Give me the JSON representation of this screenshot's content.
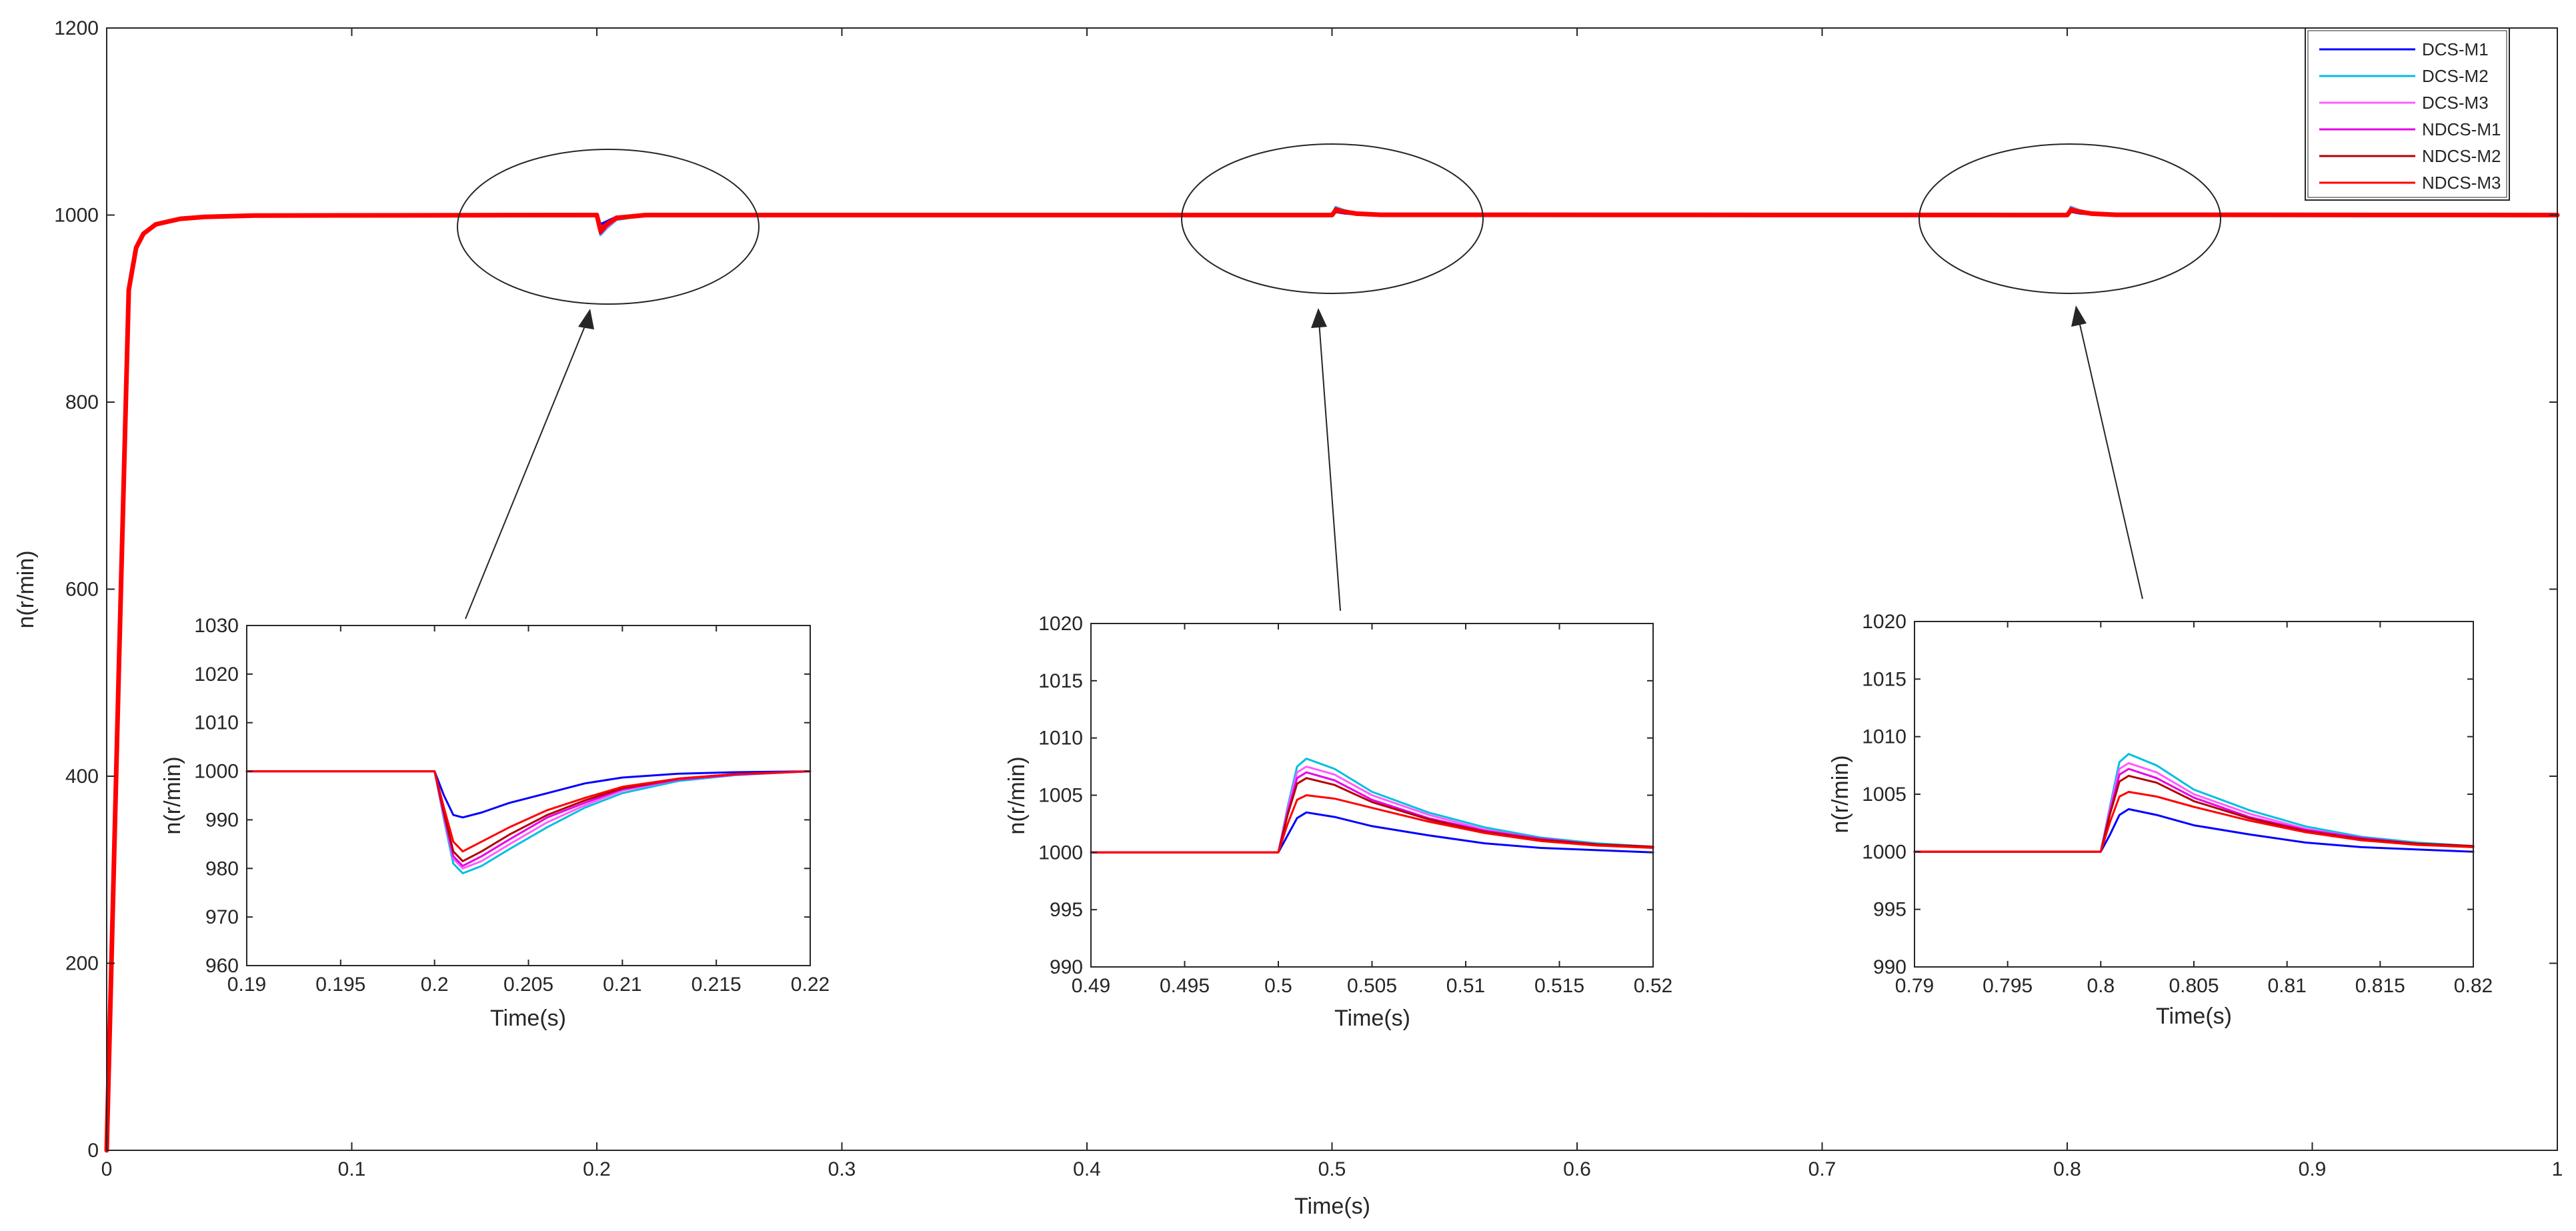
{
  "colors": {
    "DCS-M1": "#0000ff",
    "DCS-M2": "#00bfe0",
    "DCS-M3": "#ff5cff",
    "NDCS-M1": "#e600e6",
    "NDCS-M2": "#b30000",
    "NDCS-M3": "#ff0000",
    "axis": "#262626",
    "background": "#ffffff"
  },
  "chart_data": [
    {
      "type": "line",
      "title": "",
      "xlabel": "Time(s)",
      "ylabel": "n(r/min)",
      "xlim": [
        0,
        1
      ],
      "ylim": [
        0,
        1200
      ],
      "xticks": [
        0,
        0.1,
        0.2,
        0.3,
        0.4,
        0.5,
        0.6,
        0.7,
        0.8,
        0.9,
        1
      ],
      "xtick_labels": [
        "0",
        "0.1",
        "0.2",
        "0.3",
        "0.4",
        "0.5",
        "0.6",
        "0.7",
        "0.8",
        "0.9",
        "1"
      ],
      "yticks": [
        0,
        200,
        400,
        600,
        800,
        1000,
        1200
      ],
      "ytick_labels": [
        "0",
        "200",
        "400",
        "600",
        "800",
        "1000",
        "1200"
      ],
      "grid": false,
      "legend_position": "top-right",
      "series": [
        {
          "name": "DCS-M1",
          "x": [
            0,
            0.005,
            0.009,
            0.012,
            0.015,
            0.02,
            0.03,
            0.04,
            0.06,
            0.2,
            0.2015,
            0.204,
            0.208,
            0.22,
            0.5,
            0.5015,
            0.505,
            0.51,
            0.52,
            0.8,
            0.8015,
            0.805,
            0.81,
            0.82,
            1
          ],
          "y": [
            0,
            520,
            920,
            965,
            980,
            990,
            996,
            998,
            999.5,
            1000,
            990,
            993,
            998,
            1000,
            1000,
            1003.5,
            1002,
            1001,
            1000,
            1000,
            1003.7,
            1002,
            1001,
            1000,
            1000
          ]
        },
        {
          "name": "DCS-M2",
          "x": [
            0,
            0.005,
            0.009,
            0.012,
            0.015,
            0.02,
            0.03,
            0.04,
            0.06,
            0.2,
            0.2015,
            0.204,
            0.208,
            0.22,
            0.5,
            0.5015,
            0.505,
            0.51,
            0.52,
            0.8,
            0.8015,
            0.805,
            0.81,
            0.82,
            1
          ],
          "y": [
            0,
            520,
            920,
            965,
            980,
            990,
            996,
            998,
            999.5,
            1000,
            979,
            986,
            995,
            1000,
            1000,
            1008.3,
            1005,
            1002,
            1000.5,
            1000,
            1008.5,
            1005,
            1002,
            1000.5,
            1000
          ]
        },
        {
          "name": "DCS-M3",
          "x": [
            0,
            0.005,
            0.009,
            0.012,
            0.015,
            0.02,
            0.03,
            0.04,
            0.06,
            0.2,
            0.2015,
            0.204,
            0.208,
            0.22,
            0.5,
            0.5015,
            0.505,
            0.51,
            0.52,
            0.8,
            0.8015,
            0.805,
            0.81,
            0.82,
            1
          ],
          "y": [
            0,
            520,
            920,
            965,
            980,
            990,
            996,
            998,
            999.5,
            1000,
            980,
            987,
            995.5,
            1000,
            1000,
            1007.5,
            1004.5,
            1002,
            1000.5,
            1000,
            1007.7,
            1004.5,
            1002,
            1000.5,
            1000
          ]
        },
        {
          "name": "NDCS-M1",
          "x": [
            0,
            0.005,
            0.009,
            0.012,
            0.015,
            0.02,
            0.03,
            0.04,
            0.06,
            0.2,
            0.2015,
            0.204,
            0.208,
            0.22,
            0.5,
            0.5015,
            0.505,
            0.51,
            0.52,
            0.8,
            0.8015,
            0.805,
            0.81,
            0.82,
            1
          ],
          "y": [
            0,
            520,
            920,
            965,
            980,
            990,
            996,
            998,
            999.5,
            1000,
            980.5,
            988,
            996,
            1000,
            1000,
            1007,
            1004,
            1001.8,
            1000.4,
            1000,
            1007.2,
            1004,
            1001.8,
            1000.4,
            1000
          ]
        },
        {
          "name": "NDCS-M2",
          "x": [
            0,
            0.005,
            0.009,
            0.012,
            0.015,
            0.02,
            0.03,
            0.04,
            0.06,
            0.2,
            0.2015,
            0.204,
            0.208,
            0.22,
            0.5,
            0.5015,
            0.505,
            0.51,
            0.52,
            0.8,
            0.8015,
            0.805,
            0.81,
            0.82,
            1
          ],
          "y": [
            0,
            520,
            920,
            965,
            980,
            990,
            996,
            998,
            999.5,
            1000,
            981.5,
            989,
            996.5,
            1000,
            1000,
            1006.5,
            1004,
            1001.8,
            1000.4,
            1000,
            1006.5,
            1004,
            1001.8,
            1000.4,
            1000
          ]
        },
        {
          "name": "NDCS-M3",
          "x": [
            0,
            0.005,
            0.009,
            0.012,
            0.015,
            0.02,
            0.03,
            0.04,
            0.06,
            0.2,
            0.2015,
            0.204,
            0.208,
            0.22,
            0.5,
            0.5015,
            0.505,
            0.51,
            0.52,
            0.8,
            0.8015,
            0.805,
            0.81,
            0.82,
            1
          ],
          "y": [
            0,
            520,
            920,
            965,
            980,
            990,
            996,
            998,
            999.5,
            1000,
            983.5,
            990,
            997,
            1000,
            1000,
            1005,
            1003.5,
            1001.5,
            1000.3,
            1000,
            1005.2,
            1003.5,
            1001.5,
            1000.3,
            1000
          ]
        }
      ]
    },
    {
      "type": "line",
      "title": "",
      "xlabel": "Time(s)",
      "ylabel": "n(r/min)",
      "xlim": [
        0.19,
        0.22
      ],
      "ylim": [
        960,
        1030
      ],
      "xticks": [
        0.19,
        0.195,
        0.2,
        0.205,
        0.21,
        0.215,
        0.22
      ],
      "xtick_labels": [
        "0.19",
        "0.195",
        "0.2",
        "0.205",
        "0.21",
        "0.215",
        "0.22"
      ],
      "yticks": [
        960,
        970,
        980,
        990,
        1000,
        1010,
        1020,
        1030
      ],
      "ytick_labels": [
        "960",
        "970",
        "980",
        "990",
        "1000",
        "1010",
        "1020",
        "1030"
      ],
      "grid": false,
      "series": [
        {
          "name": "DCS-M1",
          "x": [
            0.19,
            0.2,
            0.2005,
            0.201,
            0.2015,
            0.2025,
            0.204,
            0.206,
            0.208,
            0.21,
            0.213,
            0.216,
            0.22
          ],
          "y": [
            1000,
            1000,
            995,
            991,
            990.5,
            991.5,
            993.5,
            995.5,
            997.5,
            998.7,
            999.5,
            999.8,
            1000
          ]
        },
        {
          "name": "DCS-M2",
          "x": [
            0.19,
            0.2,
            0.2005,
            0.201,
            0.2015,
            0.2025,
            0.204,
            0.206,
            0.208,
            0.21,
            0.213,
            0.216,
            0.22
          ],
          "y": [
            1000,
            1000,
            990,
            981,
            979,
            980.5,
            984,
            988.5,
            992.5,
            995.5,
            998,
            999.2,
            1000
          ]
        },
        {
          "name": "DCS-M3",
          "x": [
            0.19,
            0.2,
            0.2005,
            0.201,
            0.2015,
            0.2025,
            0.204,
            0.206,
            0.208,
            0.21,
            0.213,
            0.216,
            0.22
          ],
          "y": [
            1000,
            1000,
            990.5,
            982,
            980,
            981.5,
            985,
            989.5,
            993,
            996,
            998.3,
            999.3,
            1000
          ]
        },
        {
          "name": "NDCS-M1",
          "x": [
            0.19,
            0.2,
            0.2005,
            0.201,
            0.2015,
            0.2025,
            0.204,
            0.206,
            0.208,
            0.21,
            0.213,
            0.216,
            0.22
          ],
          "y": [
            1000,
            1000,
            991,
            982.5,
            980.5,
            982.5,
            986,
            990.5,
            993.5,
            996.3,
            998.3,
            999.3,
            1000
          ]
        },
        {
          "name": "NDCS-M2",
          "x": [
            0.19,
            0.2,
            0.2005,
            0.201,
            0.2015,
            0.2025,
            0.204,
            0.206,
            0.208,
            0.21,
            0.213,
            0.216,
            0.22
          ],
          "y": [
            1000,
            1000,
            991.5,
            983.5,
            981.5,
            983.5,
            987,
            991,
            994,
            996.5,
            998.5,
            999.4,
            1000
          ]
        },
        {
          "name": "NDCS-M3",
          "x": [
            0.19,
            0.2,
            0.2005,
            0.201,
            0.2015,
            0.2025,
            0.204,
            0.206,
            0.208,
            0.21,
            0.213,
            0.216,
            0.22
          ],
          "y": [
            1000,
            1000,
            992.5,
            985.5,
            983.5,
            985.5,
            988.5,
            992,
            994.5,
            996.8,
            998.5,
            999.4,
            1000
          ]
        }
      ]
    },
    {
      "type": "line",
      "title": "",
      "xlabel": "Time(s)",
      "ylabel": "n(r/min)",
      "xlim": [
        0.49,
        0.52
      ],
      "ylim": [
        990,
        1020
      ],
      "xticks": [
        0.49,
        0.495,
        0.5,
        0.505,
        0.51,
        0.515,
        0.52
      ],
      "xtick_labels": [
        "0.49",
        "0.495",
        "0.5",
        "0.505",
        "0.51",
        "0.515",
        "0.52"
      ],
      "yticks": [
        990,
        995,
        1000,
        1005,
        1010,
        1015,
        1020
      ],
      "ytick_labels": [
        "990",
        "995",
        "1000",
        "1005",
        "1010",
        "1015",
        "1020"
      ],
      "grid": false,
      "series": [
        {
          "name": "DCS-M1",
          "x": [
            0.49,
            0.5,
            0.5005,
            0.501,
            0.5015,
            0.503,
            0.505,
            0.508,
            0.511,
            0.514,
            0.517,
            0.52
          ],
          "y": [
            1000,
            1000,
            1001.5,
            1003,
            1003.5,
            1003.1,
            1002.3,
            1001.5,
            1000.8,
            1000.4,
            1000.2,
            1000
          ]
        },
        {
          "name": "DCS-M2",
          "x": [
            0.49,
            0.5,
            0.5005,
            0.501,
            0.5015,
            0.503,
            0.505,
            0.508,
            0.511,
            0.514,
            0.517,
            0.52
          ],
          "y": [
            1000,
            1000,
            1004,
            1007.5,
            1008.2,
            1007.3,
            1005.3,
            1003.5,
            1002.2,
            1001.3,
            1000.8,
            1000.5
          ]
        },
        {
          "name": "DCS-M3",
          "x": [
            0.49,
            0.5,
            0.5005,
            0.501,
            0.5015,
            0.503,
            0.505,
            0.508,
            0.511,
            0.514,
            0.517,
            0.52
          ],
          "y": [
            1000,
            1000,
            1003.8,
            1007,
            1007.5,
            1006.8,
            1005,
            1003.3,
            1002,
            1001.2,
            1000.7,
            1000.5
          ]
        },
        {
          "name": "NDCS-M1",
          "x": [
            0.49,
            0.5,
            0.5005,
            0.501,
            0.5015,
            0.503,
            0.505,
            0.508,
            0.511,
            0.514,
            0.517,
            0.52
          ],
          "y": [
            1000,
            1000,
            1003.5,
            1006.5,
            1007,
            1006.3,
            1004.6,
            1003,
            1001.9,
            1001.2,
            1000.7,
            1000.5
          ]
        },
        {
          "name": "NDCS-M2",
          "x": [
            0.49,
            0.5,
            0.5005,
            0.501,
            0.5015,
            0.503,
            0.505,
            0.508,
            0.511,
            0.514,
            0.517,
            0.52
          ],
          "y": [
            1000,
            1000,
            1003.3,
            1006,
            1006.5,
            1005.9,
            1004.4,
            1002.9,
            1001.8,
            1001.1,
            1000.7,
            1000.5
          ]
        },
        {
          "name": "NDCS-M3",
          "x": [
            0.49,
            0.5,
            0.5005,
            0.501,
            0.5015,
            0.503,
            0.505,
            0.508,
            0.511,
            0.514,
            0.517,
            0.52
          ],
          "y": [
            1000,
            1000,
            1002.5,
            1004.6,
            1005,
            1004.7,
            1003.9,
            1002.7,
            1001.7,
            1001,
            1000.6,
            1000.4
          ]
        }
      ]
    },
    {
      "type": "line",
      "title": "",
      "xlabel": "Time(s)",
      "ylabel": "n(r/min)",
      "xlim": [
        0.79,
        0.82
      ],
      "ylim": [
        990,
        1020
      ],
      "xticks": [
        0.79,
        0.795,
        0.8,
        0.805,
        0.81,
        0.815,
        0.82
      ],
      "xtick_labels": [
        "0.79",
        "0.795",
        "0.8",
        "0.805",
        "0.81",
        "0.815",
        "0.82"
      ],
      "yticks": [
        990,
        995,
        1000,
        1005,
        1010,
        1015,
        1020
      ],
      "ytick_labels": [
        "990",
        "995",
        "1000",
        "1005",
        "1010",
        "1015",
        "1020"
      ],
      "grid": false,
      "series": [
        {
          "name": "DCS-M1",
          "x": [
            0.79,
            0.8,
            0.8005,
            0.801,
            0.8015,
            0.803,
            0.805,
            0.808,
            0.811,
            0.814,
            0.817,
            0.82
          ],
          "y": [
            1000,
            1000,
            1001.5,
            1003.2,
            1003.7,
            1003.2,
            1002.3,
            1001.5,
            1000.8,
            1000.4,
            1000.2,
            1000
          ]
        },
        {
          "name": "DCS-M2",
          "x": [
            0.79,
            0.8,
            0.8005,
            0.801,
            0.8015,
            0.803,
            0.805,
            0.808,
            0.811,
            0.814,
            0.817,
            0.82
          ],
          "y": [
            1000,
            1000,
            1004,
            1007.8,
            1008.5,
            1007.5,
            1005.4,
            1003.6,
            1002.2,
            1001.3,
            1000.8,
            1000.5
          ]
        },
        {
          "name": "DCS-M3",
          "x": [
            0.79,
            0.8,
            0.8005,
            0.801,
            0.8015,
            0.803,
            0.805,
            0.808,
            0.811,
            0.814,
            0.817,
            0.82
          ],
          "y": [
            1000,
            1000,
            1003.8,
            1007.2,
            1007.7,
            1006.9,
            1005,
            1003.3,
            1002,
            1001.2,
            1000.7,
            1000.5
          ]
        },
        {
          "name": "NDCS-M1",
          "x": [
            0.79,
            0.8,
            0.8005,
            0.801,
            0.8015,
            0.803,
            0.805,
            0.808,
            0.811,
            0.814,
            0.817,
            0.82
          ],
          "y": [
            1000,
            1000,
            1003.5,
            1006.7,
            1007.2,
            1006.4,
            1004.7,
            1003,
            1001.9,
            1001.2,
            1000.7,
            1000.5
          ]
        },
        {
          "name": "NDCS-M2",
          "x": [
            0.79,
            0.8,
            0.8005,
            0.801,
            0.8015,
            0.803,
            0.805,
            0.808,
            0.811,
            0.814,
            0.817,
            0.82
          ],
          "y": [
            1000,
            1000,
            1003.3,
            1006.1,
            1006.6,
            1006,
            1004.4,
            1002.9,
            1001.8,
            1001.1,
            1000.7,
            1000.5
          ]
        },
        {
          "name": "NDCS-M3",
          "x": [
            0.79,
            0.8,
            0.8005,
            0.801,
            0.8015,
            0.803,
            0.805,
            0.808,
            0.811,
            0.814,
            0.817,
            0.82
          ],
          "y": [
            1000,
            1000,
            1002.6,
            1004.8,
            1005.2,
            1004.8,
            1003.9,
            1002.7,
            1001.7,
            1001,
            1000.6,
            1000.4
          ]
        }
      ]
    }
  ]
}
